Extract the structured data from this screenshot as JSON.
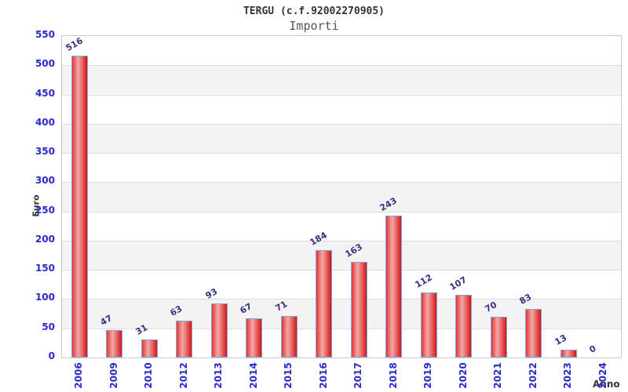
{
  "header": {
    "title": "TERGU (c.f.92002270905)",
    "subtitle": "Importi"
  },
  "chart_data": {
    "type": "bar",
    "title": "TERGU (c.f.92002270905)",
    "subtitle": "Importi",
    "xlabel": "Anno",
    "ylabel": "Euro",
    "categories": [
      "2006",
      "2009",
      "2010",
      "2012",
      "2013",
      "2014",
      "2015",
      "2016",
      "2017",
      "2018",
      "2019",
      "2020",
      "2021",
      "2022",
      "2023",
      "2024"
    ],
    "values": [
      516,
      47,
      31,
      63,
      93,
      67,
      71,
      184,
      163,
      243,
      112,
      107,
      70,
      83,
      13,
      0
    ],
    "ylim": [
      0,
      550
    ],
    "y_tick_step": 50,
    "y_ticks": [
      0,
      50,
      100,
      150,
      200,
      250,
      300,
      350,
      400,
      450,
      500,
      550
    ],
    "grid": "horizontal gridlines with alternating gray bands",
    "legend": "none",
    "colors": {
      "bar_gradient_edge_left": "#e43535",
      "bar_gradient_center": "#f4a9a9",
      "bar_gradient_edge_right": "#d61414",
      "bar_border": "#7aaae0",
      "axis_tick_label": "#2929cc",
      "value_label": "#333388",
      "band_gray": "#f3f3f3",
      "gridline": "#dcdcdc",
      "plot_border": "#c9c9c9",
      "title_color": "#333333",
      "subtitle_color": "#555555",
      "axis_title_color": "#333333"
    }
  }
}
